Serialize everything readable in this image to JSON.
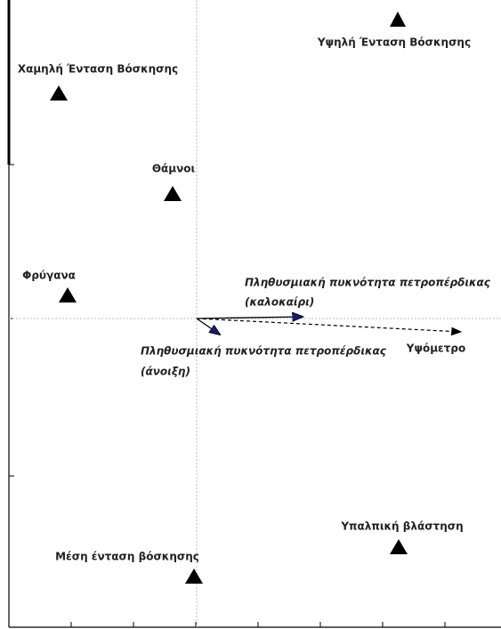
{
  "points": [
    {
      "label": "Υψηλή Ένταση Βόσκησης"
    },
    {
      "label": "Χαμηλή Ένταση Βόσκησης"
    },
    {
      "label": "Θάμνοι"
    },
    {
      "label": "Φρύγανα"
    },
    {
      "label": "Υπαλπική βλάστηση"
    },
    {
      "label": "Μέση ένταση βόσκησης"
    }
  ],
  "vectors": [
    {
      "label": [
        "Πληθυσμιακή πυκνότητα πετροπέρδικας",
        "(καλοκαίρι)"
      ]
    },
    {
      "label": [
        "Πληθυσμιακή πυκνότητα πετροπέρδικας",
        "(άνοιξη)"
      ]
    },
    {
      "label": [
        "Υψόμετρο"
      ]
    }
  ]
}
